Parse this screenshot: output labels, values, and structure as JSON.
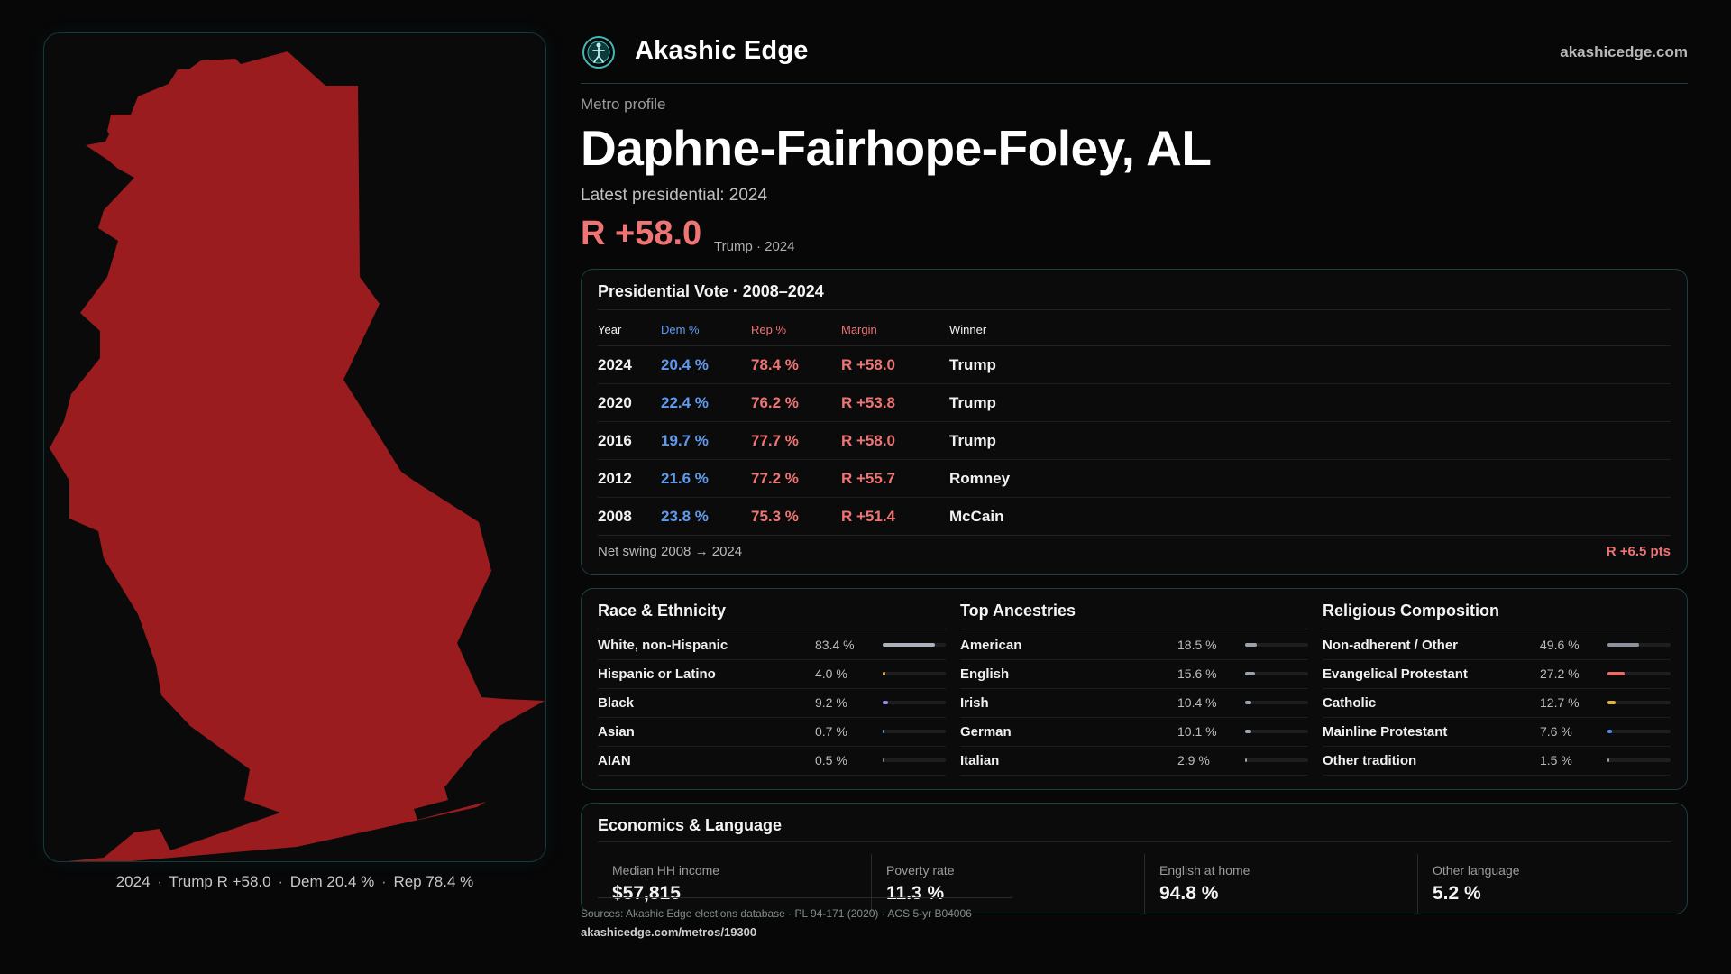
{
  "map": {
    "region_color": "#9b1c1f",
    "caption": {
      "year": "2024",
      "winner_margin": "Trump R +58.0",
      "dem": "Dem 20.4 %",
      "rep": "Rep 78.4 %",
      "separator": "·"
    }
  },
  "header": {
    "brand": "Akashic Edge",
    "site": "akashicedge.com",
    "logo_icon": "compass-figure-icon"
  },
  "profile": {
    "kicker": "Metro profile",
    "title": "Daphne-Fairhope-Foley, AL",
    "latest": "Latest presidential: 2024",
    "margin": "R +58.0",
    "margin_note": "Trump · 2024"
  },
  "colors": {
    "dem": "#5e9bf0",
    "rep": "#f07474",
    "accent_border": "#1c3f41"
  },
  "presidential": {
    "title": "Presidential Vote · 2008–2024",
    "columns": [
      "Year",
      "Dem %",
      "Rep %",
      "Margin",
      "Winner"
    ],
    "rows": [
      {
        "year": "2024",
        "dem": "20.4 %",
        "rep": "78.4 %",
        "margin": "R +58.0",
        "winner": "Trump"
      },
      {
        "year": "2020",
        "dem": "22.4 %",
        "rep": "76.2 %",
        "margin": "R +53.8",
        "winner": "Trump"
      },
      {
        "year": "2016",
        "dem": "19.7 %",
        "rep": "77.7 %",
        "margin": "R +58.0",
        "winner": "Trump"
      },
      {
        "year": "2012",
        "dem": "21.6 %",
        "rep": "77.2 %",
        "margin": "R +55.7",
        "winner": "Romney"
      },
      {
        "year": "2008",
        "dem": "23.8 %",
        "rep": "75.3 %",
        "margin": "R +51.4",
        "winner": "McCain"
      }
    ],
    "swing_label": "Net swing 2008 → 2024",
    "swing_value": "R +6.5 pts"
  },
  "demographics": [
    {
      "title": "Race & Ethnicity",
      "items": [
        {
          "label": "White, non-Hispanic",
          "value": "83.4 %",
          "pct": 83.4,
          "color": "#aab2bd"
        },
        {
          "label": "Hispanic or Latino",
          "value": "4.0 %",
          "pct": 4.0,
          "color": "#e0a93a"
        },
        {
          "label": "Black",
          "value": "9.2 %",
          "pct": 9.2,
          "color": "#9a86e6"
        },
        {
          "label": "Asian",
          "value": "0.7 %",
          "pct": 0.7,
          "color": "#5aa8e0"
        },
        {
          "label": "AIAN",
          "value": "0.5 %",
          "pct": 0.5,
          "color": "#8a8a8a"
        }
      ]
    },
    {
      "title": "Top Ancestries",
      "items": [
        {
          "label": "American",
          "value": "18.5 %",
          "pct": 18.5,
          "color": "#9aa2ac"
        },
        {
          "label": "English",
          "value": "15.6 %",
          "pct": 15.6,
          "color": "#9aa2ac"
        },
        {
          "label": "Irish",
          "value": "10.4 %",
          "pct": 10.4,
          "color": "#9aa2ac"
        },
        {
          "label": "German",
          "value": "10.1 %",
          "pct": 10.1,
          "color": "#9aa2ac"
        },
        {
          "label": "Italian",
          "value": "2.9 %",
          "pct": 2.9,
          "color": "#9aa2ac"
        }
      ]
    },
    {
      "title": "Religious Composition",
      "items": [
        {
          "label": "Non-adherent / Other",
          "value": "49.6 %",
          "pct": 49.6,
          "color": "#8c939c"
        },
        {
          "label": "Evangelical Protestant",
          "value": "27.2 %",
          "pct": 27.2,
          "color": "#f06a6a"
        },
        {
          "label": "Catholic",
          "value": "12.7 %",
          "pct": 12.7,
          "color": "#e0b23a"
        },
        {
          "label": "Mainline Protestant",
          "value": "7.6 %",
          "pct": 7.6,
          "color": "#4f8de8"
        },
        {
          "label": "Other tradition",
          "value": "1.5 %",
          "pct": 1.5,
          "color": "#9a9a9a"
        }
      ]
    }
  ],
  "economics": {
    "title": "Economics & Language",
    "stats": [
      {
        "label": "Median HH income",
        "value": "$57,815"
      },
      {
        "label": "Poverty rate",
        "value": "11.3 %"
      },
      {
        "label": "English at home",
        "value": "94.8 %"
      },
      {
        "label": "Other language",
        "value": "5.2 %"
      }
    ]
  },
  "footer": {
    "sources": "Sources: Akashic Edge elections database · PL 94-171 (2020) · ACS 5-yr B04006",
    "url": "akashicedge.com/metros/19300"
  }
}
